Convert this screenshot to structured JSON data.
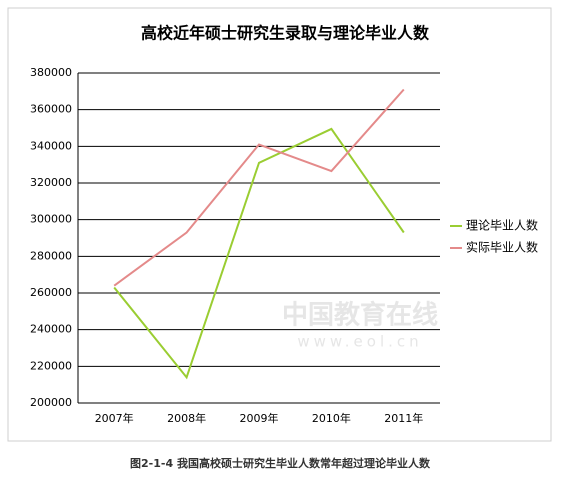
{
  "chart_data": {
    "type": "line",
    "title": "高校近年硕士研究生录取与理论毕业人数",
    "categories": [
      "2007年",
      "2008年",
      "2009年",
      "2010年",
      "2011年"
    ],
    "series": [
      {
        "name": "理论毕业人数",
        "color": "#9acd32",
        "values": [
          263000,
          214000,
          331000,
          349500,
          293000
        ]
      },
      {
        "name": "实际毕业人数",
        "color": "#e48a8a",
        "values": [
          264000,
          293000,
          341000,
          326500,
          371000
        ]
      }
    ],
    "ylim": [
      200000,
      380000
    ],
    "yticks": [
      200000,
      220000,
      240000,
      260000,
      280000,
      300000,
      320000,
      340000,
      360000,
      380000
    ],
    "grid": true,
    "legend": "right"
  },
  "watermark": {
    "name": "中国教育在线",
    "url": "www.eol.cn"
  },
  "caption": "图2-1-4 我国高校硕士研究生毕业人数常年超过理论毕业人数"
}
